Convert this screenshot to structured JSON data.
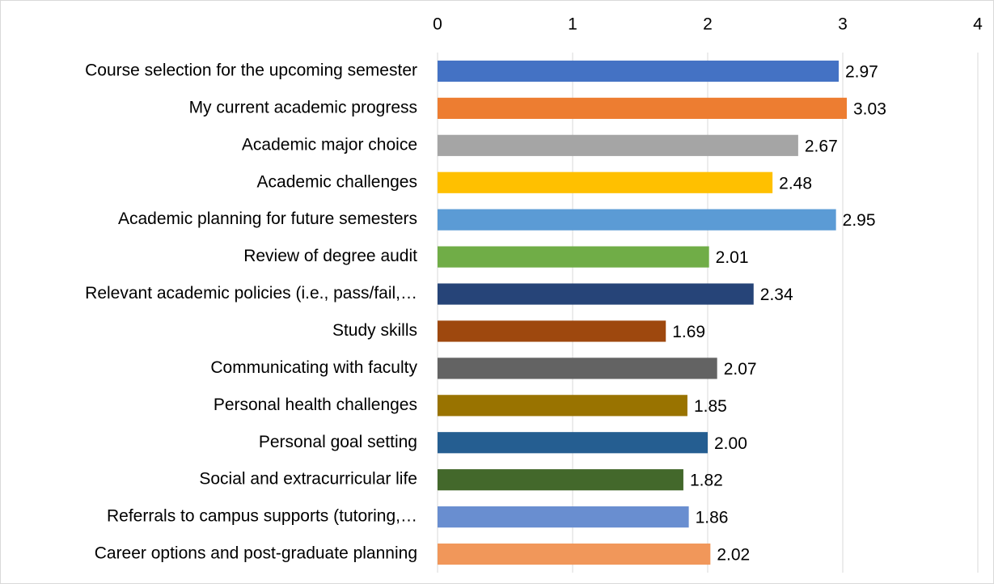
{
  "chart_data": {
    "type": "bar",
    "orientation": "horizontal",
    "categories": [
      "Course selection for the upcoming semester",
      "My current academic progress",
      "Academic major choice",
      "Academic challenges",
      "Academic planning for future semesters",
      "Review of degree audit",
      "Relevant academic policies (i.e., pass/fail,…",
      "Study skills",
      "Communicating with faculty",
      "Personal health challenges",
      "Personal goal setting",
      "Social and extracurricular life",
      "Referrals to campus supports (tutoring,…",
      "Career options and post-graduate planning"
    ],
    "values": [
      2.97,
      3.03,
      2.67,
      2.48,
      2.95,
      2.01,
      2.34,
      1.69,
      2.07,
      1.85,
      2.0,
      1.82,
      1.86,
      2.02
    ],
    "value_labels": [
      "2.97",
      "3.03",
      "2.67",
      "2.48",
      "2.95",
      "2.01",
      "2.34",
      "1.69",
      "2.07",
      "1.85",
      "2.00",
      "1.82",
      "1.86",
      "2.02"
    ],
    "colors": [
      "#4472c4",
      "#ed7d31",
      "#a5a5a5",
      "#ffc000",
      "#5b9bd5",
      "#70ad47",
      "#264478",
      "#9e480e",
      "#636363",
      "#997300",
      "#255e91",
      "#43682b",
      "#698ed0",
      "#f1975a"
    ],
    "xlim": [
      0,
      4
    ],
    "xticks": [
      0,
      1,
      2,
      3,
      4
    ],
    "grid": true
  }
}
